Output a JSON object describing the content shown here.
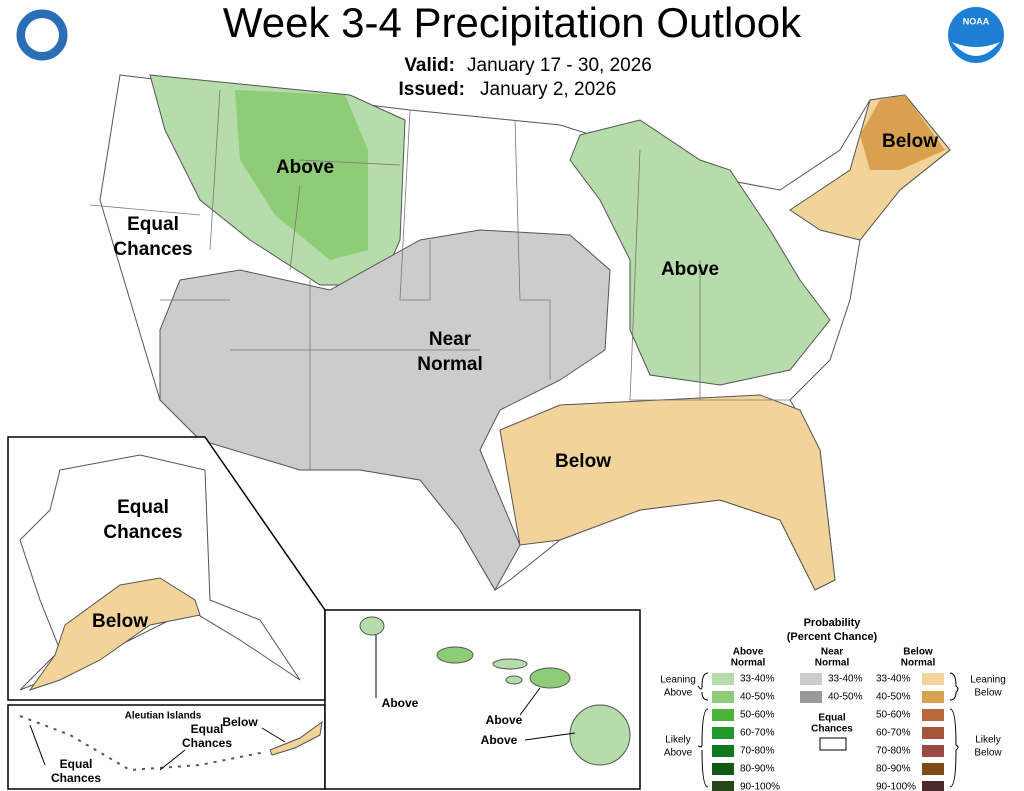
{
  "header": {
    "title": "Week 3-4 Precipitation Outlook",
    "valid_label": "Valid:",
    "valid_dates": "January 17 - 30, 2026",
    "issued_label": "Issued:",
    "issued_date": "January 2, 2026",
    "noaa_logo": "NOAA"
  },
  "contiguous_us": {
    "northwest": [
      "Above"
    ],
    "west": [
      "Equal",
      "Chances"
    ],
    "central": [
      "Near",
      "Normal"
    ],
    "northeast": [
      "Below"
    ],
    "east": [
      "Above"
    ],
    "south": [
      "Below"
    ]
  },
  "alaska": {
    "interior": [
      "Equal",
      "Chances"
    ],
    "south": [
      "Below"
    ]
  },
  "aleutians": {
    "title": "Aleutian Islands",
    "west": [
      "Equal",
      "Chances"
    ],
    "central": [
      "Equal",
      "Chances"
    ],
    "east": [
      "Below"
    ]
  },
  "hawaii": {
    "kauai": "Above",
    "maui": "Above",
    "big_island": "Above"
  },
  "legend": {
    "title": [
      "Probability",
      "(Percent Chance)"
    ],
    "above_header": [
      "Above",
      "Normal"
    ],
    "near_header": [
      "Near",
      "Normal"
    ],
    "below_header": [
      "Below",
      "Normal"
    ],
    "above": [
      "33-40%",
      "40-50%",
      "50-60%",
      "60-70%",
      "70-80%",
      "80-90%",
      "90-100%"
    ],
    "near": [
      "33-40%",
      "40-50%"
    ],
    "equal_chances": [
      "Equal",
      "Chances"
    ],
    "below": [
      "33-40%",
      "40-50%",
      "50-60%",
      "60-70%",
      "70-80%",
      "80-90%",
      "90-100%"
    ],
    "leaning_above": [
      "Leaning",
      "Above"
    ],
    "likely_above": [
      "Likely",
      "Above"
    ],
    "leaning_below": [
      "Leaning",
      "Below"
    ],
    "likely_below": [
      "Likely",
      "Below"
    ]
  }
}
